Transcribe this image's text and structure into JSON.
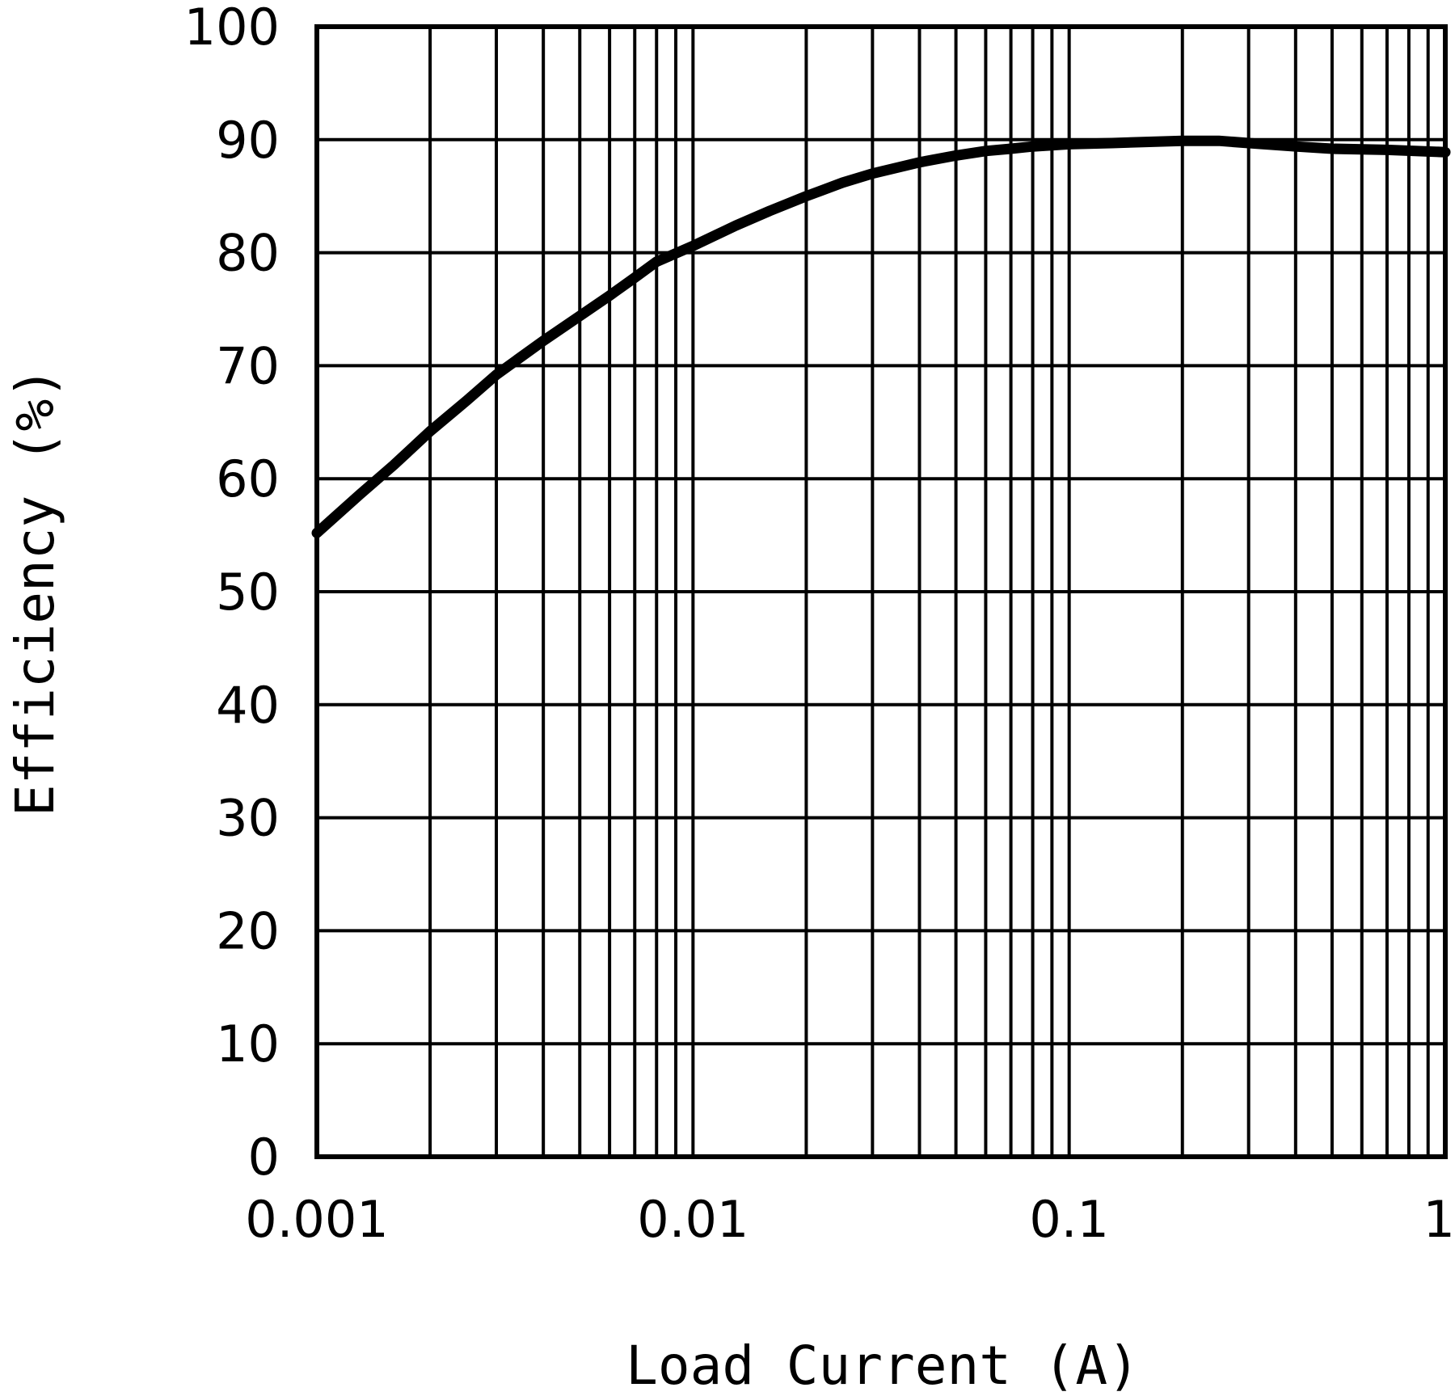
{
  "chart_data": {
    "type": "line",
    "title": "",
    "xlabel": "Load Current (A)",
    "ylabel": "Efficiency (%)",
    "xscale": "log",
    "xlim": [
      0.001,
      1
    ],
    "ylim": [
      0,
      100
    ],
    "grid": true,
    "x_tick_labels": [
      "0.001",
      "0.01",
      "0.1",
      "1"
    ],
    "y_tick_labels": [
      "0",
      "10",
      "20",
      "30",
      "40",
      "50",
      "60",
      "70",
      "80",
      "90",
      "100"
    ],
    "series": [
      {
        "color": "#000000",
        "x": [
          0.001,
          0.0013,
          0.0016,
          0.002,
          0.0025,
          0.003,
          0.004,
          0.005,
          0.006,
          0.007,
          0.008,
          0.01,
          0.013,
          0.016,
          0.02,
          0.025,
          0.03,
          0.04,
          0.05,
          0.06,
          0.07,
          0.08,
          0.1,
          0.13,
          0.16,
          0.2,
          0.25,
          0.3,
          0.4,
          0.5,
          0.7,
          1.0
        ],
        "y": [
          55.2,
          58.6,
          61.2,
          64.2,
          66.9,
          69.2,
          72.2,
          74.4,
          76.2,
          77.8,
          79.2,
          80.6,
          82.4,
          83.7,
          85.0,
          86.2,
          87.0,
          88.0,
          88.6,
          89.0,
          89.2,
          89.4,
          89.6,
          89.7,
          89.8,
          89.9,
          89.9,
          89.7,
          89.4,
          89.2,
          89.1,
          88.9
        ]
      }
    ]
  }
}
